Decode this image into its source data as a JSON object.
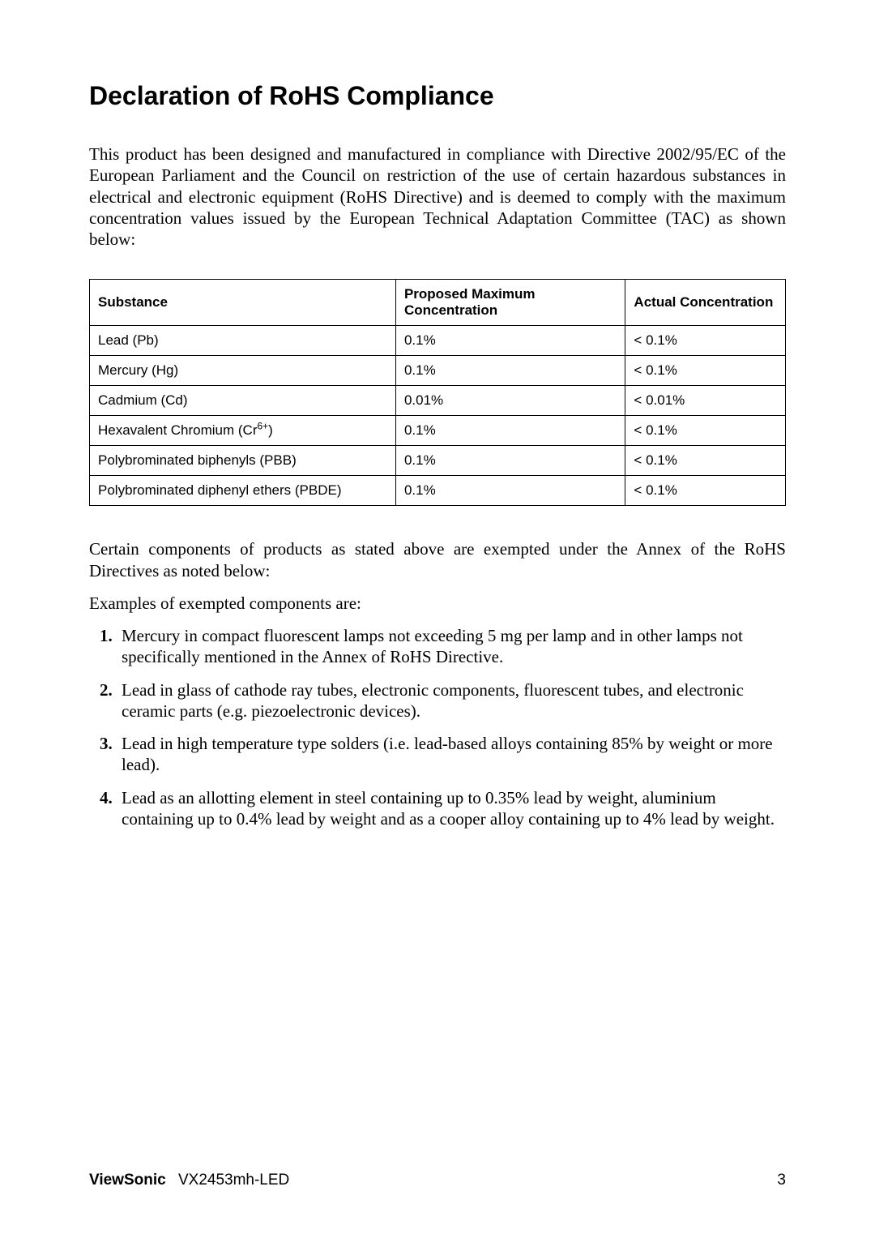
{
  "title": "Declaration of RoHS Compliance",
  "intro": "This product has been designed and manufactured in compliance with Directive 2002/95/EC of the European Parliament and the Council on restriction of the use of certain hazardous substances in electrical and electronic equipment (RoHS Directive) and is deemed to comply with the maximum concentration values issued by the European Technical Adaptation Committee (TAC) as shown below:",
  "table": {
    "headers": {
      "substance": "Substance",
      "proposed": "Proposed Maximum Concentration",
      "actual": "Actual Concentration"
    },
    "rows": [
      {
        "substance": "Lead (Pb)",
        "proposed": "0.1%",
        "actual": "< 0.1%"
      },
      {
        "substance": "Mercury (Hg)",
        "proposed": "0.1%",
        "actual": "< 0.1%"
      },
      {
        "substance": "Cadmium (Cd)",
        "proposed": "0.01%",
        "actual": "< 0.01%"
      },
      {
        "substance_pre": "Hexavalent Chromium (Cr",
        "substance_sup": "6+",
        "substance_post": ")",
        "proposed": "0.1%",
        "actual": "< 0.1%"
      },
      {
        "substance": "Polybrominated biphenyls (PBB)",
        "proposed": "0.1%",
        "actual": "< 0.1%"
      },
      {
        "substance": "Polybrominated diphenyl ethers (PBDE)",
        "proposed": "0.1%",
        "actual": "< 0.1%"
      }
    ]
  },
  "exempt_intro1": "Certain components of products as stated above are exempted under the Annex of the RoHS Directives as noted below:",
  "exempt_intro2": "Examples of exempted components are:",
  "exemptions": [
    "Mercury in compact fluorescent lamps not exceeding 5 mg per lamp and in other lamps not specifically mentioned in the Annex of RoHS Directive.",
    "Lead in glass of cathode ray tubes, electronic components, fluorescent tubes, and electronic ceramic parts (e.g. piezoelectronic devices).",
    "Lead in high temperature type solders (i.e. lead-based alloys containing 85% by weight or more lead).",
    "Lead as an allotting element in steel containing up to 0.35% lead by weight, aluminium containing up to 0.4% lead by weight and as a cooper alloy containing up to 4% lead by weight."
  ],
  "footer": {
    "brand": "ViewSonic",
    "model": "VX2453mh-LED",
    "page": "3"
  }
}
